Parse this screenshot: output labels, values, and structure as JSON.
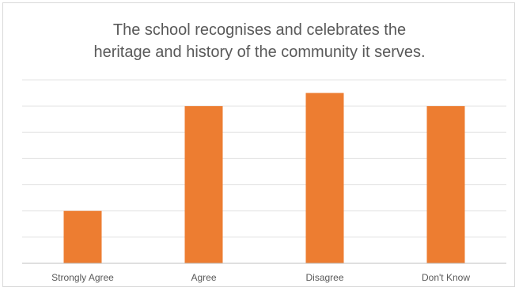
{
  "chart_data": {
    "type": "bar",
    "title": [
      "The school recognises and celebrates the",
      "heritage and history of the community it serves."
    ],
    "categories": [
      "Strongly Agree",
      "Agree",
      "Disagree",
      "Don't Know"
    ],
    "values": [
      2,
      6,
      6.5,
      6
    ],
    "ylim": [
      0,
      7
    ],
    "grid": true,
    "legend": "none",
    "colors": {
      "bar": "#ED7D31",
      "grid": "#e3e3e3",
      "axis": "#bfbfbf",
      "text": "#595959"
    }
  }
}
